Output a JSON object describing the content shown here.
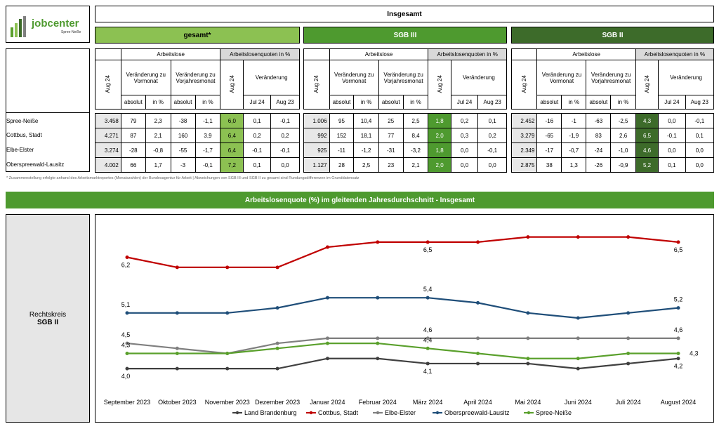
{
  "logo": {
    "name": "jobcenter",
    "sub": "Spree-Neiße"
  },
  "title": "Insgesamt",
  "sections": [
    {
      "label": "gesamt*"
    },
    {
      "label": "SGB III"
    },
    {
      "label": "SGB II"
    }
  ],
  "col_headers": {
    "arbeitslose": "Arbeitslose",
    "quoten": "Arbeitslosenquoten in %",
    "aug24": "Aug 24",
    "vormonat": "Veränderung zu Vormonat",
    "vorjahr": "Veränderung zu Vorjahresmonat",
    "veraenderung": "Veränderung",
    "absolut": "absolut",
    "inpct": "in %",
    "jul24": "Jul 24",
    "aug23": "Aug 23"
  },
  "regions": [
    "Spree-Neiße",
    "Cottbus, Stadt",
    "Elbe-Elster",
    "Oberspreewald-Lausitz"
  ],
  "tables": [
    {
      "rows": [
        [
          "3.458",
          "79",
          "2,3",
          "-38",
          "-1,1",
          "6,0",
          "0,1",
          "-0,1"
        ],
        [
          "4.271",
          "87",
          "2,1",
          "160",
          "3,9",
          "6,4",
          "0,2",
          "0,2"
        ],
        [
          "3.274",
          "-28",
          "-0,8",
          "-55",
          "-1,7",
          "6,4",
          "-0,1",
          "-0,1"
        ],
        [
          "4.002",
          "66",
          "1,7",
          "-3",
          "-0,1",
          "7,2",
          "0,1",
          "0,0"
        ]
      ]
    },
    {
      "rows": [
        [
          "1.006",
          "95",
          "10,4",
          "25",
          "2,5",
          "1,8",
          "0,2",
          "0,1"
        ],
        [
          "992",
          "152",
          "18,1",
          "77",
          "8,4",
          "2,0",
          "0,3",
          "0,2"
        ],
        [
          "925",
          "-11",
          "-1,2",
          "-31",
          "-3,2",
          "1,8",
          "0,0",
          "-0,1"
        ],
        [
          "1.127",
          "28",
          "2,5",
          "23",
          "2,1",
          "2,0",
          "0,0",
          "0,0"
        ]
      ]
    },
    {
      "rows": [
        [
          "2.452",
          "-16",
          "-1",
          "-63",
          "-2,5",
          "4,3",
          "0,0",
          "-0,1"
        ],
        [
          "3.279",
          "-65",
          "-1,9",
          "83",
          "2,6",
          "6,5",
          "-0,1",
          "0,1"
        ],
        [
          "2.349",
          "-17",
          "-0,7",
          "-24",
          "-1,0",
          "4,6",
          "0,0",
          "0,0"
        ],
        [
          "2.875",
          "38",
          "1,3",
          "-26",
          "-0,9",
          "5,2",
          "0,1",
          "0,0"
        ]
      ]
    }
  ],
  "footnote": "* Zusammenstellung erfolgte anhand des Arbeitsmarktreportes (Monatszahlen) der Bundesagentur für Arbeit | Abweichungen von SGB III und SGB II zu gesamt sind Rundungsdifferenzen im Grunddatensatz",
  "banner": "Arbeitslosenquote (%) im gleitenden Jahresdurchschnitt - Insgesamt",
  "side_label": {
    "line1": "Rechtskreis",
    "line2": "SGB II"
  },
  "colors": {
    "light_green": "#8cc152",
    "mid_green": "#4e9a2f",
    "dark_green": "#3d6b2a"
  },
  "chart_data": {
    "type": "line",
    "categories": [
      "September 2023",
      "Oktober 2023",
      "November 2023",
      "Dezember 2023",
      "Januar 2024",
      "Februar 2024",
      "März 2024",
      "April 2024",
      "Mai 2024",
      "Juni 2024",
      "Juli 2024",
      "August 2024"
    ],
    "ylim": [
      3.6,
      6.9
    ],
    "grid": false,
    "legend": "bottom",
    "series": [
      {
        "name": "Land Brandenburg",
        "color": "#404040",
        "values": [
          4.0,
          4.0,
          4.0,
          4.0,
          4.2,
          4.2,
          4.1,
          4.1,
          4.1,
          4.0,
          4.1,
          4.2
        ]
      },
      {
        "name": "Cottbus, Stadt",
        "color": "#c00000",
        "values": [
          6.2,
          6.0,
          6.0,
          6.0,
          6.4,
          6.5,
          6.5,
          6.5,
          6.6,
          6.6,
          6.6,
          6.5
        ]
      },
      {
        "name": "Elbe-Elster",
        "color": "#7f7f7f",
        "values": [
          4.5,
          4.4,
          4.3,
          4.5,
          4.6,
          4.6,
          4.6,
          4.6,
          4.6,
          4.6,
          4.6,
          4.6
        ]
      },
      {
        "name": "Oberspreewald-Lausitz",
        "color": "#1f4e79",
        "values": [
          5.1,
          5.1,
          5.1,
          5.2,
          5.4,
          5.4,
          5.4,
          5.3,
          5.1,
          5.0,
          5.1,
          5.2
        ]
      },
      {
        "name": "Spree-Neiße",
        "color": "#5aa02c",
        "values": [
          4.3,
          4.3,
          4.3,
          4.4,
          4.5,
          4.5,
          4.4,
          4.3,
          4.2,
          4.2,
          4.3,
          4.3
        ]
      }
    ],
    "data_labels": [
      {
        "series": 0,
        "points": [
          0,
          6,
          11
        ],
        "texts": [
          "4,0",
          "4,1",
          "4,2"
        ]
      },
      {
        "series": 1,
        "points": [
          0,
          6,
          11
        ],
        "texts": [
          "6,2",
          "6,5",
          "6,5"
        ]
      },
      {
        "series": 2,
        "points": [
          0,
          6,
          11
        ],
        "texts": [
          "4,5",
          "4,6",
          "4,6"
        ]
      },
      {
        "series": 3,
        "points": [
          0,
          6,
          11
        ],
        "texts": [
          "5,1",
          "5,4",
          "5,2"
        ]
      },
      {
        "series": 4,
        "points": [
          0,
          6,
          11
        ],
        "texts": [
          "4,3",
          "4,4",
          "4,3"
        ]
      }
    ]
  }
}
